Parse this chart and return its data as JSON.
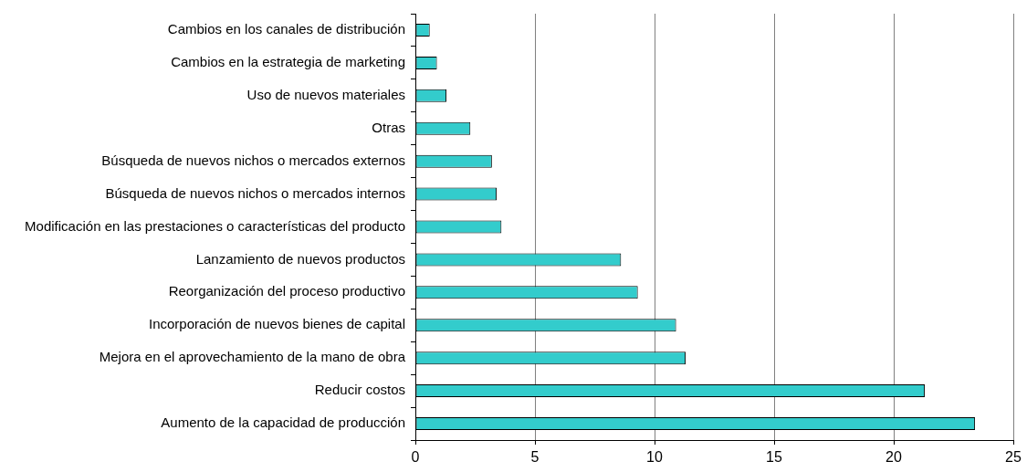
{
  "chart_data": {
    "type": "bar",
    "orientation": "horizontal",
    "categories": [
      "Cambios en los canales de distribución",
      "Cambios en la estrategia de marketing",
      "Uso de nuevos materiales",
      "Otras",
      "Búsqueda de nuevos nichos o mercados externos",
      "Búsqueda de nuevos nichos o mercados internos",
      "Modificación en las prestaciones o características del producto",
      "Lanzamiento de nuevos productos",
      "Reorganización del proceso productivo",
      "Incorporación de nuevos bienes de capital",
      "Mejora en el aprovechamiento de la mano de obra",
      "Reducir costos",
      "Aumento de la capacidad de producción"
    ],
    "values": [
      0.6,
      0.9,
      1.3,
      2.3,
      3.2,
      3.4,
      3.6,
      8.6,
      9.3,
      10.9,
      11.3,
      21.3,
      23.4
    ],
    "color": "#33cccc",
    "xlim": [
      0,
      25
    ],
    "xticks": [
      0,
      5,
      10,
      15,
      20,
      25
    ],
    "grid": "x"
  }
}
